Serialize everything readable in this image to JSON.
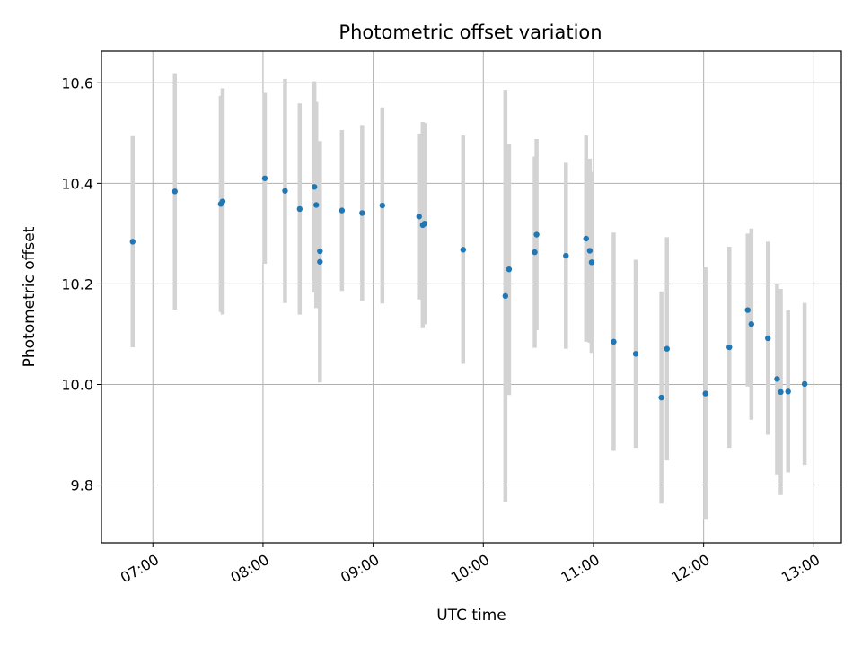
{
  "chart_data": {
    "type": "scatter",
    "title": "Photometric offset variation",
    "xlabel": "UTC time",
    "ylabel": "Photometric offset",
    "x_tick_labels": [
      "07:00",
      "08:00",
      "09:00",
      "10:00",
      "11:00",
      "12:00",
      "13:00"
    ],
    "y_tick_labels": [
      "9.8",
      "10.0",
      "10.2",
      "10.4",
      "10.6"
    ],
    "xlim": [
      "06:32",
      "13:15"
    ],
    "ylim": [
      9.685,
      10.663
    ],
    "grid": true,
    "point_color": "#1f77b4",
    "errorbar_color": "#d3d3d3",
    "points": [
      {
        "x": "06:49",
        "y": 10.284,
        "err": 0.21
      },
      {
        "x": "07:12",
        "y": 10.384,
        "err": 0.235
      },
      {
        "x": "07:37",
        "y": 10.359,
        "err": 0.215
      },
      {
        "x": "07:38",
        "y": 10.364,
        "err": 0.225
      },
      {
        "x": "08:01",
        "y": 10.41,
        "err": 0.17
      },
      {
        "x": "08:12",
        "y": 10.385,
        "err": 0.223
      },
      {
        "x": "08:20",
        "y": 10.349,
        "err": 0.21
      },
      {
        "x": "08:28",
        "y": 10.393,
        "err": 0.21
      },
      {
        "x": "08:29",
        "y": 10.357,
        "err": 0.205
      },
      {
        "x": "08:31",
        "y": 10.265,
        "err": 0.08
      },
      {
        "x": "08:31",
        "y": 10.244,
        "err": 0.24
      },
      {
        "x": "08:43",
        "y": 10.346,
        "err": 0.16
      },
      {
        "x": "08:54",
        "y": 10.341,
        "err": 0.175
      },
      {
        "x": "09:05",
        "y": 10.356,
        "err": 0.195
      },
      {
        "x": "09:25",
        "y": 10.334,
        "err": 0.165
      },
      {
        "x": "09:27",
        "y": 10.317,
        "err": 0.205
      },
      {
        "x": "09:28",
        "y": 10.32,
        "err": 0.2
      },
      {
        "x": "09:49",
        "y": 10.268,
        "err": 0.227
      },
      {
        "x": "10:12",
        "y": 10.176,
        "err": 0.41
      },
      {
        "x": "10:14",
        "y": 10.229,
        "err": 0.25
      },
      {
        "x": "10:28",
        "y": 10.263,
        "err": 0.19
      },
      {
        "x": "10:29",
        "y": 10.298,
        "err": 0.19
      },
      {
        "x": "10:45",
        "y": 10.256,
        "err": 0.185
      },
      {
        "x": "10:56",
        "y": 10.29,
        "err": 0.205
      },
      {
        "x": "10:58",
        "y": 10.266,
        "err": 0.183
      },
      {
        "x": "10:59",
        "y": 10.243,
        "err": 0.18
      },
      {
        "x": "11:11",
        "y": 10.085,
        "err": 0.217
      },
      {
        "x": "11:23",
        "y": 10.061,
        "err": 0.187
      },
      {
        "x": "11:37",
        "y": 9.974,
        "err": 0.211
      },
      {
        "x": "11:40",
        "y": 10.071,
        "err": 0.222
      },
      {
        "x": "12:01",
        "y": 9.982,
        "err": 0.251
      },
      {
        "x": "12:14",
        "y": 10.074,
        "err": 0.2
      },
      {
        "x": "12:24",
        "y": 10.148,
        "err": 0.152
      },
      {
        "x": "12:26",
        "y": 10.12,
        "err": 0.19
      },
      {
        "x": "12:35",
        "y": 10.092,
        "err": 0.192
      },
      {
        "x": "12:40",
        "y": 10.011,
        "err": 0.19
      },
      {
        "x": "12:42",
        "y": 9.985,
        "err": 0.205
      },
      {
        "x": "12:46",
        "y": 9.986,
        "err": 0.161
      },
      {
        "x": "12:55",
        "y": 10.001,
        "err": 0.161
      }
    ]
  }
}
